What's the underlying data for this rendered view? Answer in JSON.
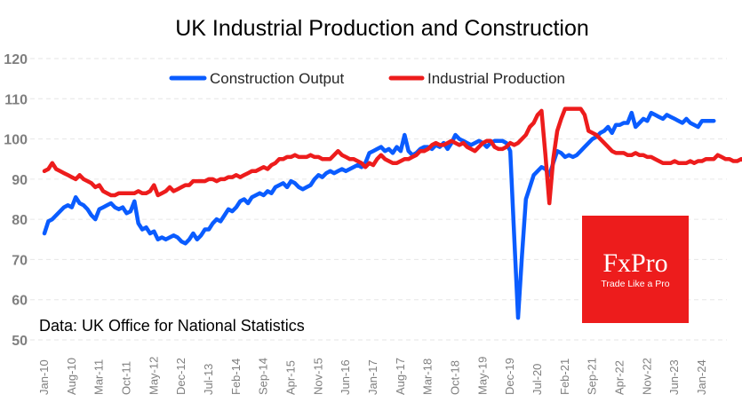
{
  "chart_data": {
    "type": "line",
    "title": "UK Industrial Production and Construction",
    "xlabel": "",
    "ylabel": "",
    "ylim": [
      50,
      120
    ],
    "yticks": [
      50,
      60,
      70,
      80,
      90,
      100,
      110,
      120
    ],
    "grid": true,
    "legend_position": "top-center",
    "start_month": "Jan-10",
    "xtick_labels": [
      "Jan-10",
      "Aug-10",
      "Mar-11",
      "Oct-11",
      "May-12",
      "Dec-12",
      "Jul-13",
      "Feb-14",
      "Sep-14",
      "Apr-15",
      "Nov-15",
      "Jun-16",
      "Jan-17",
      "Aug-17",
      "Mar-18",
      "Oct-18",
      "May-19",
      "Dec-19",
      "Jul-20",
      "Feb-21",
      "Sep-21",
      "Apr-22",
      "Nov-22",
      "Jun-23",
      "Jan-24"
    ],
    "xtick_step_months": 7,
    "series": [
      {
        "name": "Construction Output",
        "color": "#0a5cff",
        "values": [
          76.5,
          79.5,
          80,
          81,
          82,
          83,
          83.5,
          83,
          85.5,
          84,
          83.5,
          82.5,
          81,
          80,
          82.5,
          83,
          83.5,
          84,
          83,
          82.5,
          83,
          81.5,
          82,
          84.5,
          79,
          77.5,
          78,
          76.5,
          77,
          75,
          75.5,
          75,
          75.5,
          76,
          75.5,
          74.5,
          74,
          75,
          76.5,
          75,
          76,
          77.5,
          77.5,
          79,
          80,
          79.5,
          81,
          82.5,
          82,
          83,
          84.5,
          85,
          84,
          85.5,
          86,
          86.5,
          86,
          87,
          86.5,
          88,
          88.5,
          89,
          88,
          89.5,
          89,
          88,
          87.5,
          88,
          88.5,
          90,
          91,
          90.5,
          91.5,
          92,
          91.5,
          92,
          92.5,
          92,
          92.5,
          93,
          93.5,
          93,
          94,
          96.5,
          97,
          97.5,
          98,
          97,
          97.5,
          96.5,
          98,
          97,
          101,
          97,
          96,
          96.5,
          97.5,
          98,
          98,
          97.5,
          98.5,
          98,
          99,
          97.5,
          99,
          101,
          100,
          99.5,
          99,
          98.5,
          99,
          99.5,
          99,
          98,
          99,
          99.5,
          99.5,
          99.5,
          99,
          97,
          76,
          55.5,
          71,
          85,
          88,
          91,
          92,
          93,
          92.5,
          91,
          94,
          97,
          96.5,
          95.5,
          96,
          95.5,
          96,
          97,
          98,
          99,
          100,
          100.5,
          101.5,
          102,
          103,
          101.5,
          103.5,
          103.5,
          104,
          104,
          106.5,
          103,
          104,
          105,
          104.5,
          106.5,
          106,
          105.5,
          105,
          106,
          105.5,
          105,
          104.5,
          104,
          105,
          104,
          103.5,
          103,
          104.5,
          104.5,
          104.5,
          104.5
        ]
      },
      {
        "name": "Industrial Production",
        "color": "#ed1c1c",
        "values": [
          92,
          92.5,
          94,
          92.5,
          92,
          91.5,
          91,
          90.5,
          90,
          91,
          90,
          89.5,
          89,
          88,
          88.5,
          87,
          86.5,
          86,
          86,
          86.5,
          86.5,
          86.5,
          86.5,
          86.5,
          87,
          86.5,
          86.5,
          87,
          88.5,
          86,
          86.5,
          87,
          88,
          87,
          87.5,
          88,
          88.5,
          88.5,
          89.5,
          89.5,
          89.5,
          89.5,
          90,
          90,
          89.5,
          90,
          90,
          90.5,
          90.5,
          91,
          90.5,
          91,
          91.5,
          92,
          92,
          92.5,
          93,
          92.5,
          93.5,
          94,
          95,
          95,
          95.5,
          95.5,
          96,
          95.5,
          95.5,
          95.5,
          96,
          95.5,
          95.5,
          95,
          95,
          95,
          96,
          97,
          96,
          95.5,
          95,
          95,
          94.5,
          94,
          93,
          94,
          93.5,
          95,
          96,
          95,
          94.5,
          94,
          94,
          94.5,
          95,
          95,
          95.5,
          96,
          97,
          97,
          97.5,
          98.5,
          99,
          98.5,
          98.5,
          99,
          99.5,
          99,
          98.5,
          99,
          98,
          97.5,
          97,
          98,
          99,
          99.5,
          99.5,
          98,
          97.5,
          97.5,
          98,
          99,
          98.5,
          99,
          100,
          101,
          103,
          104,
          106,
          107,
          96,
          84,
          95,
          102,
          105,
          107.5,
          107.5,
          107.5,
          107.5,
          107.5,
          106,
          102,
          101.5,
          101,
          100,
          99,
          98,
          97,
          96.5,
          96.5,
          96.5,
          96,
          96,
          96.5,
          96,
          96,
          95.5,
          95.5,
          95,
          94.5,
          94,
          94,
          94,
          94.5,
          94,
          94,
          94,
          94.5,
          94,
          94.5,
          94.5,
          95,
          95,
          95,
          96,
          95.5,
          95,
          95,
          94.5,
          94.5,
          95,
          94.5
        ]
      }
    ]
  },
  "annotation": {
    "source_note": "Data: UK Office for National Statistics"
  },
  "logo": {
    "brand": "FxPro",
    "tagline": "Trade Like a Pro",
    "background_color": "#ed1c1c"
  }
}
